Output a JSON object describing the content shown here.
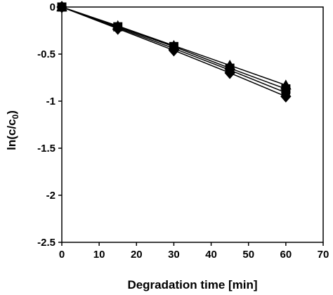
{
  "chart_data": {
    "type": "line",
    "xlabel": "Degradation time [min]",
    "ylabel_main": "ln(c/c",
    "ylabel_sub": "0",
    "ylabel_close": ")",
    "xlim": [
      0,
      70
    ],
    "ylim": [
      -2.5,
      0
    ],
    "xticks": [
      0,
      10,
      20,
      30,
      40,
      50,
      60,
      70
    ],
    "yticks": [
      0,
      -0.5,
      -1,
      -1.5,
      -2,
      -2.5
    ],
    "ytick_labels": [
      "0",
      "-0.5",
      "-1",
      "-1.5",
      "-2",
      "-2.5"
    ],
    "grid": false,
    "x": [
      0,
      15,
      30,
      45,
      60
    ],
    "series": [
      {
        "marker": "triangle",
        "values": [
          0,
          -0.2,
          -0.41,
          -0.62,
          -0.83
        ]
      },
      {
        "marker": "square",
        "values": [
          0,
          -0.21,
          -0.42,
          -0.65,
          -0.87
        ]
      },
      {
        "marker": "circle",
        "values": [
          0,
          -0.22,
          -0.44,
          -0.67,
          -0.91
        ]
      },
      {
        "marker": "diamond",
        "values": [
          0,
          -0.23,
          -0.46,
          -0.7,
          -0.95
        ]
      }
    ],
    "colors": {
      "line": "#000000",
      "marker": "#000000",
      "axis": "#000000"
    }
  }
}
